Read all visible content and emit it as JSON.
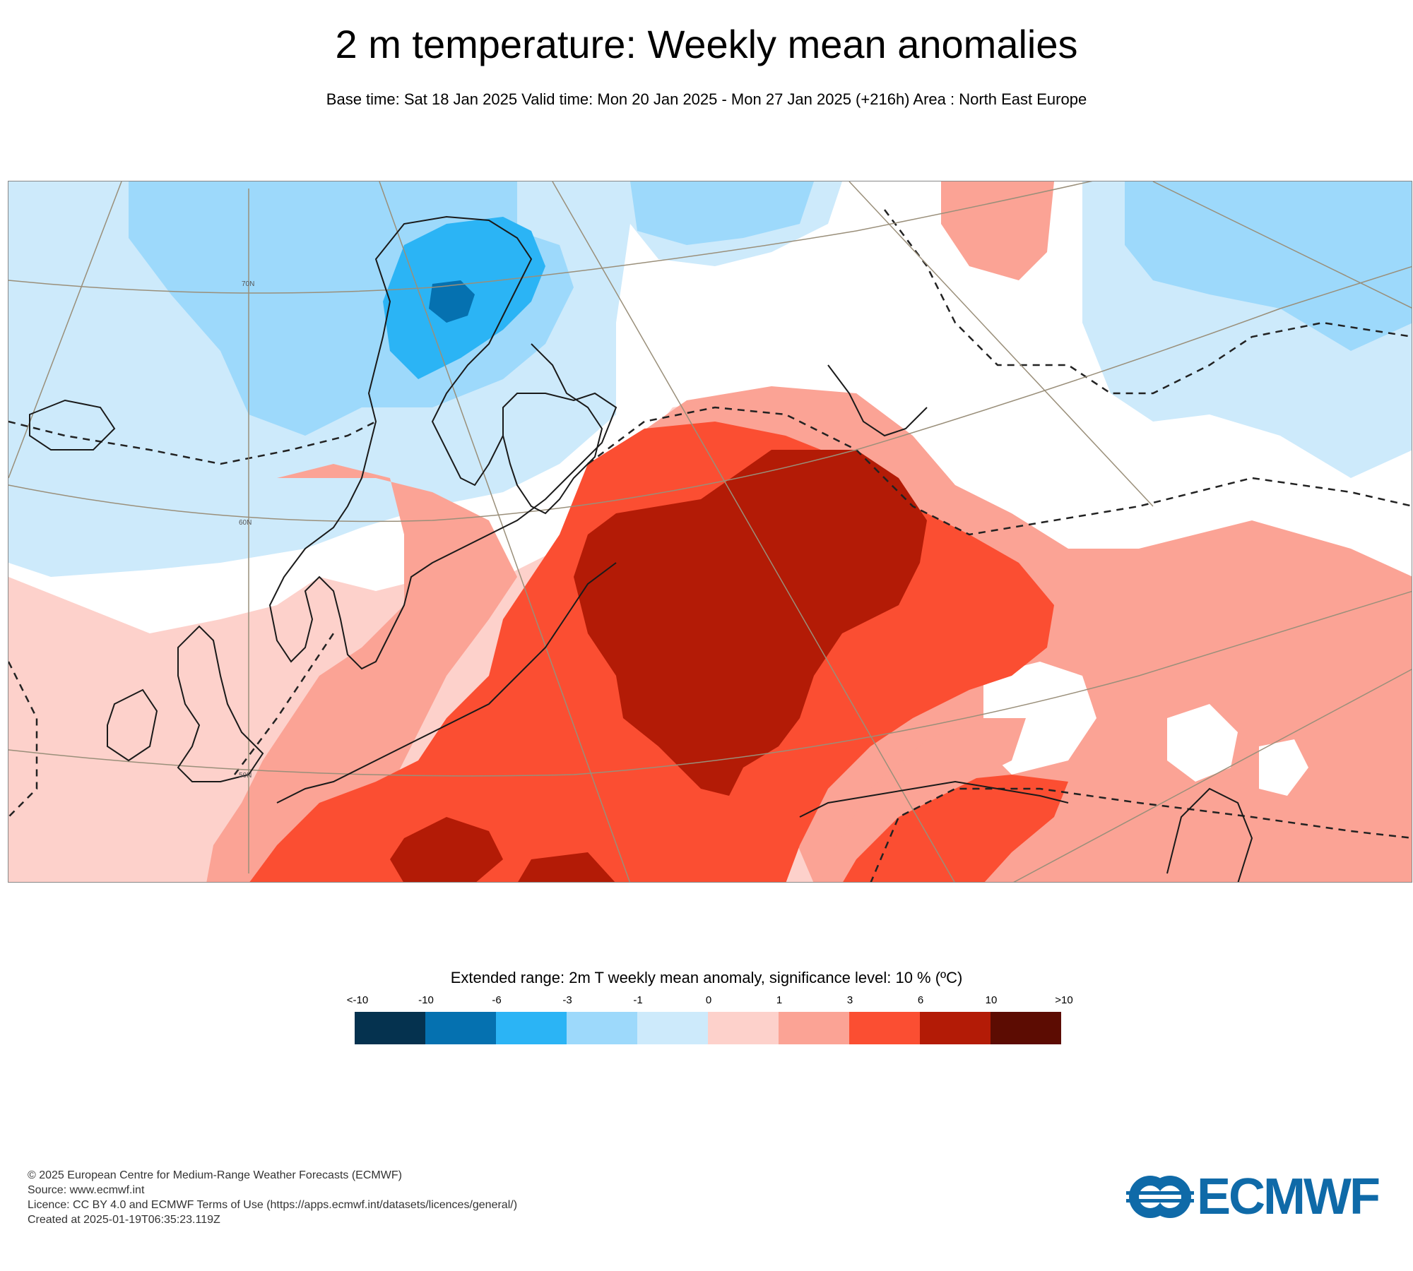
{
  "title": "2 m temperature: Weekly mean anomalies",
  "subtitle": "Base time: Sat 18 Jan 2025 Valid time: Mon 20 Jan 2025 - Mon 27 Jan 2025 (+216h) Area : North East Europe",
  "map": {
    "lat_labels": [
      "70N",
      "60N",
      "50N"
    ],
    "category_colors": {
      "lt_minus10": "#05324f",
      "minus10_minus6": "#0571b0",
      "minus6_minus3": "#2bb4f5",
      "minus3_minus1": "#9dd9fb",
      "minus1_0": "#cdeafb",
      "zero_1": "#fdd1cb",
      "one_3": "#fba395",
      "three_6": "#fb4e32",
      "six_10": "#b31b06",
      "gt_10": "#5c0c02"
    },
    "significance_contour": "dashed",
    "coastline_color": "#1a1a1a"
  },
  "legend": {
    "title": "Extended range: 2m T weekly mean anomaly, significance level: 10 % (ºC)",
    "ticks": [
      "<-10",
      "-10",
      "-6",
      "-3",
      "-1",
      "0",
      "1",
      "3",
      "6",
      "10",
      ">10"
    ],
    "colors": [
      "#05324f",
      "#0571b0",
      "#2bb4f5",
      "#9dd9fb",
      "#cdeafb",
      "#fdd1cb",
      "#fba395",
      "#fb4e32",
      "#b31b06",
      "#5c0c02"
    ]
  },
  "footer": {
    "copyright": "© 2025 European Centre for Medium-Range Weather Forecasts (ECMWF)",
    "source": "Source: www.ecmwf.int",
    "licence": "Licence: CC BY 4.0 and ECMWF Terms of Use (https://apps.ecmwf.int/datasets/licences/general/)",
    "created": "Created at 2025-01-19T06:35:23.119Z"
  },
  "logo": {
    "text": "ECMWF",
    "color": "#0f6aa8"
  }
}
